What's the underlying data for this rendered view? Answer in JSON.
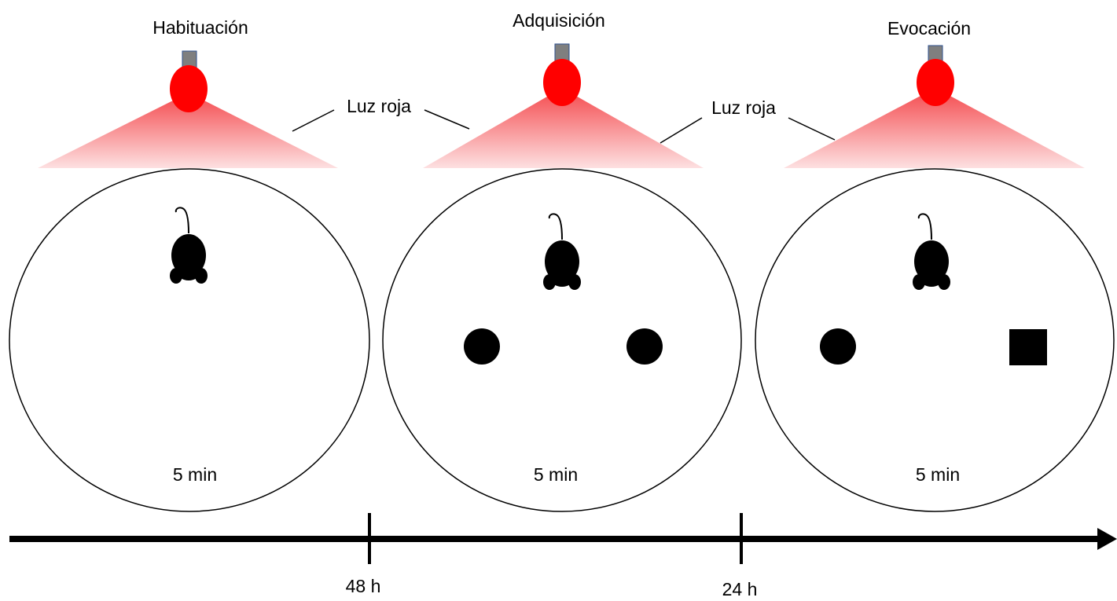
{
  "stages": [
    {
      "title": "Habituación",
      "duration": "5 min"
    },
    {
      "title": "Adquisición",
      "duration": "5 min"
    },
    {
      "title": "Evocación",
      "duration": "5 min"
    }
  ],
  "light_labels": [
    "Luz roja",
    "Luz roja"
  ],
  "intervals": [
    "48 h",
    "24 h"
  ]
}
